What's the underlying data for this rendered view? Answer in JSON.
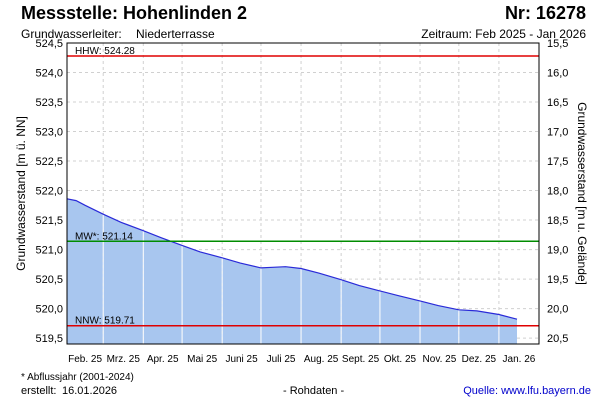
{
  "header": {
    "title": "Messstelle: Hohenlinden 2",
    "nr": "Nr: 16278",
    "aquifer_label": "Grundwasserleiter:",
    "aquifer_value": "Niederterrasse",
    "period": "Zeitraum: Feb 2025 - Jan 2026"
  },
  "footer": {
    "footnote": "* Abflussjahr (2001-2024)",
    "created_label": "erstellt:",
    "created_date": "16.01.2026",
    "raw": "- Rohdaten -",
    "source": "Quelle: www.lfu.bayern.de"
  },
  "colors": {
    "fill": "#a8c6ef",
    "line": "#2a2ad8",
    "hhw": "#e00000",
    "mw": "#008c00",
    "nnw": "#e00000",
    "grid": "#d0d0d0"
  },
  "chart_data": {
    "type": "area",
    "ylabel": "Grundwasserstand [m ü. NN]",
    "ylabel_right": "Grundwasserstand [m u. Gelände]",
    "ylim": [
      519.4,
      524.5
    ],
    "y_ticks": [
      "519,5",
      "520,0",
      "520,5",
      "521,0",
      "521,5",
      "522,0",
      "522,5",
      "523,0",
      "523,5",
      "524,0",
      "524,5"
    ],
    "y_right_ticks": [
      "20,5",
      "20,0",
      "19,5",
      "19,0",
      "18,5",
      "18,0",
      "17,5",
      "17,0",
      "16,5",
      "16,0",
      "15,5"
    ],
    "x_ticks": [
      "Feb. 25",
      "Mrz. 25",
      "Apr. 25",
      "Mai 25",
      "Juni 25",
      "Juli 25",
      "Aug. 25",
      "Sept. 25",
      "Okt. 25",
      "Nov. 25",
      "Dez. 25",
      "Jan. 26"
    ],
    "series": [
      {
        "x": [
          "2025-02-01",
          "2025-02-08",
          "2025-02-15",
          "2025-03-01",
          "2025-03-15",
          "2025-04-01",
          "2025-04-15",
          "2025-05-01",
          "2025-05-15",
          "2025-06-01",
          "2025-06-15",
          "2025-07-01",
          "2025-07-10",
          "2025-07-20",
          "2025-08-01",
          "2025-08-15",
          "2025-09-01",
          "2025-09-15",
          "2025-10-01",
          "2025-10-15",
          "2025-11-01",
          "2025-11-15",
          "2025-12-01",
          "2025-12-15",
          "2026-01-01",
          "2026-01-15"
        ],
        "values": [
          521.86,
          521.83,
          521.75,
          521.6,
          521.46,
          521.32,
          521.2,
          521.07,
          520.96,
          520.86,
          520.77,
          520.69,
          520.7,
          520.71,
          520.68,
          520.6,
          520.49,
          520.39,
          520.3,
          520.22,
          520.13,
          520.05,
          519.98,
          519.96,
          519.9,
          519.82
        ]
      }
    ],
    "reference_lines": [
      {
        "label": "HHW: 524.28",
        "value": 524.28,
        "color": "#e00000"
      },
      {
        "label": "MW*: 521.14",
        "value": 521.14,
        "color": "#008c00"
      },
      {
        "label": "NNW: 519.71",
        "value": 519.71,
        "color": "#e00000"
      }
    ]
  }
}
